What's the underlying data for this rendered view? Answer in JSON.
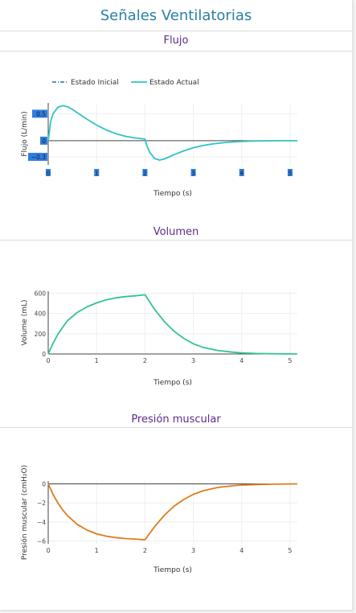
{
  "page": {
    "title": "Señales Ventilatorias"
  },
  "sections": [
    {
      "title": "Flujo"
    },
    {
      "title": "Volumen"
    },
    {
      "title": "Presión muscular"
    }
  ],
  "colors": {
    "title": "#2a7fa8",
    "section_title": "#5b2a8a",
    "flow": "#2ec4c4",
    "flow_initial": "#1f77b4",
    "volume": "#32c48d",
    "pressure": "#e07b1c",
    "axis_label_bg": "#2f7de1"
  },
  "chart_data": [
    {
      "type": "line",
      "title": "Flujo",
      "xlabel": "Tiempo (s)",
      "ylabel": "Flujo (L/min)",
      "xlim": [
        0,
        5.15
      ],
      "ylim": [
        -0.45,
        0.7
      ],
      "xticks": [
        "0",
        "1",
        "2",
        "3",
        "4",
        "5"
      ],
      "yticks": [
        {
          "value": 0.5,
          "label": "0.5"
        },
        {
          "value": 0,
          "label": "0"
        },
        {
          "value": -0.3,
          "label": "−0.3"
        }
      ],
      "legend": {
        "position": "top-left",
        "entries": [
          "Estado Inicial",
          "Estado Actual"
        ]
      },
      "series": [
        {
          "name": "Estado Inicial",
          "style": "dashdot",
          "x": [],
          "y": []
        },
        {
          "name": "Estado Actual",
          "style": "solid",
          "x": [
            0,
            0.05,
            0.1,
            0.2,
            0.3,
            0.4,
            0.5,
            0.6,
            0.8,
            1.0,
            1.2,
            1.4,
            1.6,
            1.8,
            2.0,
            2.05,
            2.1,
            2.2,
            2.3,
            2.4,
            2.5,
            2.6,
            2.8,
            3.0,
            3.2,
            3.4,
            3.6,
            3.8,
            4.0,
            4.2,
            4.5,
            4.8,
            5.15
          ],
          "y": [
            0,
            0.35,
            0.5,
            0.62,
            0.65,
            0.63,
            0.58,
            0.52,
            0.4,
            0.29,
            0.2,
            0.13,
            0.08,
            0.05,
            0.03,
            -0.12,
            -0.22,
            -0.33,
            -0.36,
            -0.34,
            -0.3,
            -0.26,
            -0.19,
            -0.13,
            -0.09,
            -0.06,
            -0.04,
            -0.025,
            -0.015,
            -0.008,
            -0.003,
            -0.001,
            0
          ]
        }
      ]
    },
    {
      "type": "line",
      "title": "Volumen",
      "xlabel": "Tiempo (s)",
      "ylabel": "Volume (mL)",
      "xlim": [
        0,
        5.15
      ],
      "ylim": [
        0,
        620
      ],
      "xticks": [
        "0",
        "1",
        "2",
        "3",
        "4",
        "5"
      ],
      "yticks": [
        {
          "value": 0,
          "label": "0"
        },
        {
          "value": 200,
          "label": "200"
        },
        {
          "value": 400,
          "label": "400"
        },
        {
          "value": 600,
          "label": "600"
        }
      ],
      "series": [
        {
          "name": "",
          "x": [
            0,
            0.1,
            0.2,
            0.3,
            0.4,
            0.6,
            0.8,
            1.0,
            1.2,
            1.4,
            1.6,
            1.8,
            2.0,
            2.2,
            2.4,
            2.6,
            2.8,
            3.0,
            3.2,
            3.5,
            3.8,
            4.0,
            4.3,
            4.6,
            5.15
          ],
          "y": [
            0,
            105,
            195,
            265,
            330,
            410,
            465,
            505,
            535,
            555,
            567,
            575,
            585,
            440,
            320,
            225,
            155,
            100,
            65,
            35,
            18,
            10,
            5,
            2,
            0
          ]
        }
      ]
    },
    {
      "type": "line",
      "title": "Presión muscular",
      "xlabel": "Tiempo (s)",
      "ylabel": "Presión muscular (cmH₂O)",
      "xlim": [
        0,
        5.15
      ],
      "ylim": [
        -6.3,
        0.3
      ],
      "xticks": [
        "0",
        "1",
        "2",
        "3",
        "4",
        "5"
      ],
      "yticks": [
        {
          "value": 0,
          "label": "0"
        },
        {
          "value": -2,
          "label": "−2"
        },
        {
          "value": -4,
          "label": "−4"
        },
        {
          "value": -6,
          "label": "−6"
        }
      ],
      "series": [
        {
          "name": "",
          "x": [
            0,
            0.1,
            0.2,
            0.3,
            0.4,
            0.6,
            0.8,
            1.0,
            1.2,
            1.4,
            1.6,
            1.8,
            2.0,
            2.2,
            2.4,
            2.6,
            2.8,
            3.0,
            3.2,
            3.5,
            3.8,
            4.0,
            4.3,
            4.6,
            5.15
          ],
          "y": [
            0,
            -1.1,
            -2.0,
            -2.75,
            -3.35,
            -4.25,
            -4.85,
            -5.25,
            -5.5,
            -5.65,
            -5.75,
            -5.8,
            -5.88,
            -4.5,
            -3.3,
            -2.35,
            -1.65,
            -1.1,
            -0.72,
            -0.38,
            -0.2,
            -0.12,
            -0.06,
            -0.03,
            0
          ]
        }
      ]
    }
  ]
}
